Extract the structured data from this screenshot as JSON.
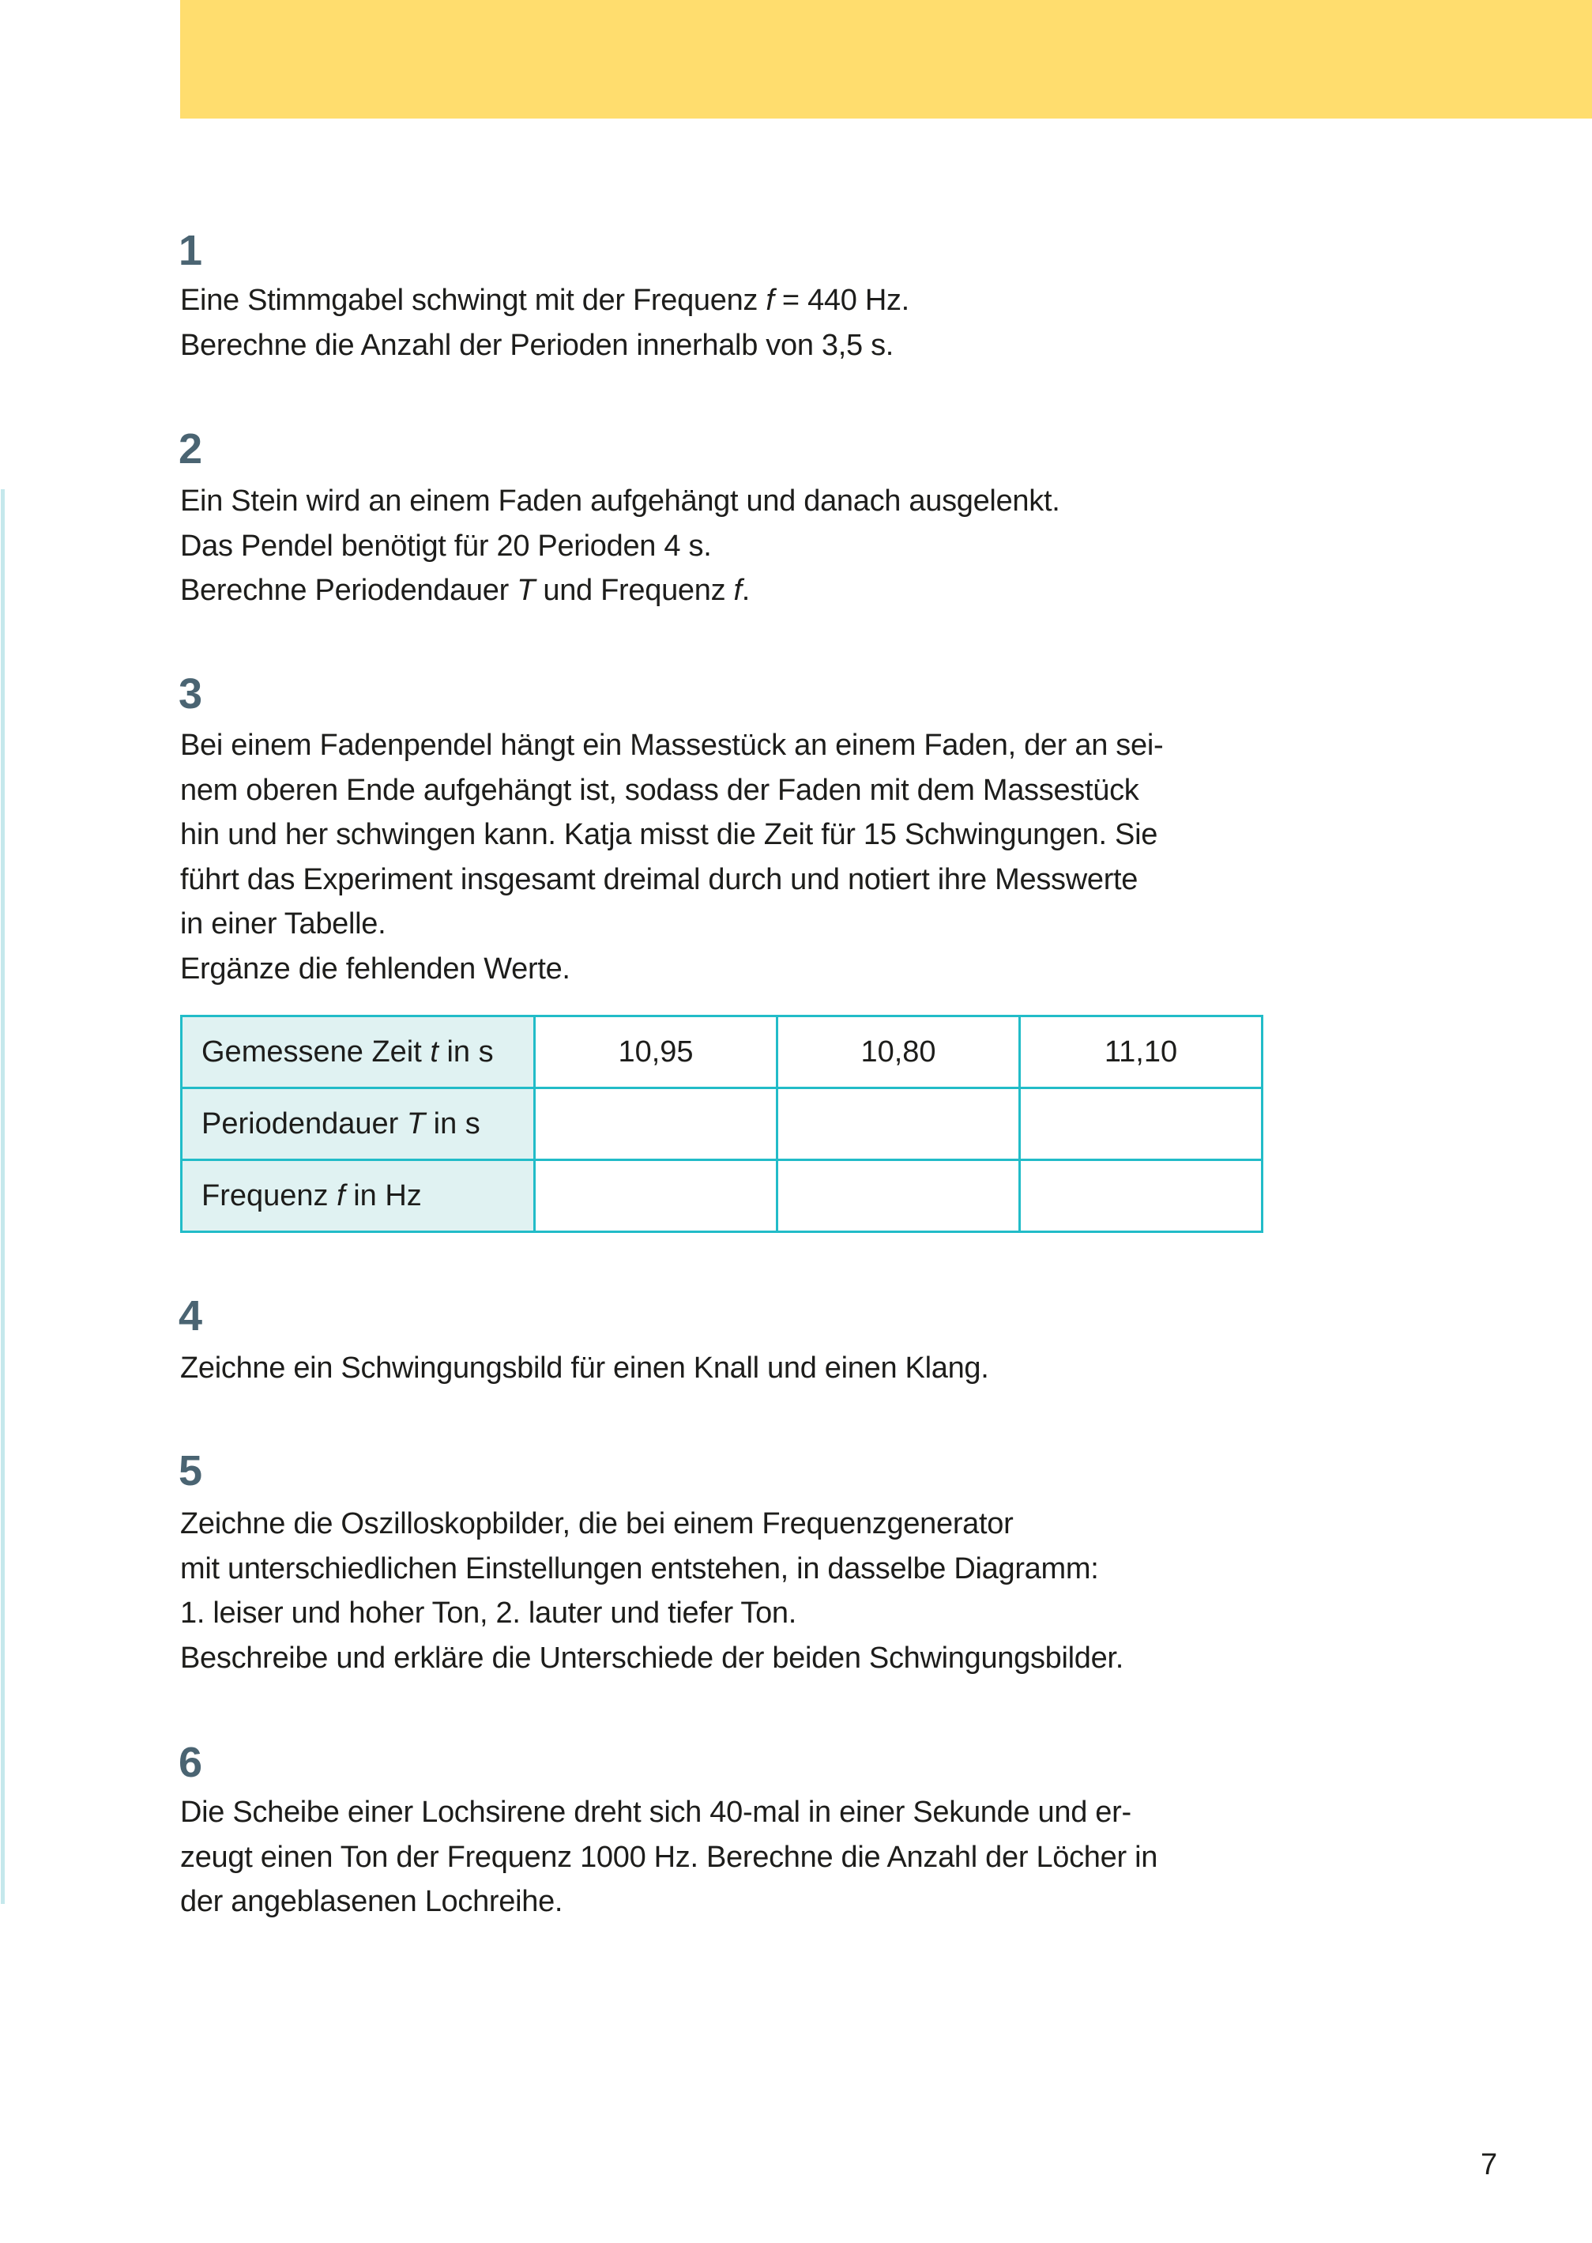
{
  "tasks": [
    {
      "number": "1",
      "lines": [
        "Eine Stimmgabel schwingt mit der Frequenz  ",
        "Berechne die Anzahl der Perioden innerhalb von 3,5 s."
      ],
      "formula_var": "f",
      "formula_rest": " = 440 Hz."
    },
    {
      "number": "2",
      "lines": [
        "Ein Stein wird an einem Faden aufgehängt und danach ausgelenkt.",
        "Das Pendel benötigt für 20 Perioden 4 s.",
        "Berechne Periodendauer ",
        "und Frequenz ",
        "."
      ],
      "var_T": "T",
      "var_f": "f"
    },
    {
      "number": "3",
      "lines": [
        "Bei einem Fadenpendel hängt ein Massestück an einem Faden, der an sei-",
        "nem oberen Ende aufgehängt ist, sodass der Faden mit dem Massestück",
        "hin und her schwingen kann. Katja misst die Zeit für 15 Schwingungen. Sie",
        "führt das Experiment insgesamt dreimal durch und notiert ihre Messwerte",
        "in einer Tabelle.",
        "Ergänze die fehlenden Werte."
      ]
    },
    {
      "number": "4",
      "lines": [
        "Zeichne ein Schwingungsbild für einen Knall und einen Klang."
      ]
    },
    {
      "number": "5",
      "lines": [
        "Zeichne die Oszilloskopbilder, die bei einem Frequenzgenerator",
        "mit unterschiedlichen Einstellungen entstehen, in dasselbe Diagramm:",
        "1. leiser und hoher Ton,  2. lauter und tiefer Ton.",
        "Beschreibe und erkläre die Unterschiede der beiden Schwingungsbilder."
      ]
    },
    {
      "number": "6",
      "lines": [
        "Die Scheibe einer Lochsirene dreht sich 40-mal in einer Sekunde und er-",
        "zeugt einen Ton der Frequenz 1000 Hz. Berechne die Anzahl der Löcher in",
        "der angeblasenen Lochreihe."
      ]
    }
  ],
  "table": {
    "rows": [
      {
        "pre": "Gemessene Zeit ",
        "var": "t",
        "post": " in s",
        "values": [
          "10,95",
          "10,80",
          "11,10"
        ]
      },
      {
        "pre": "Periodendauer ",
        "var": "T",
        "post": " in s",
        "values": [
          "",
          "",
          ""
        ]
      },
      {
        "pre": "Frequenz ",
        "var": "f",
        "post": " in Hz",
        "values": [
          "",
          "",
          ""
        ]
      }
    ]
  },
  "page_number": "7",
  "colors": {
    "header_bar": "#ffdd6e",
    "table_border": "#22bcc8",
    "table_header_bg": "#e0f2f2",
    "task_number": "#4a6472"
  }
}
